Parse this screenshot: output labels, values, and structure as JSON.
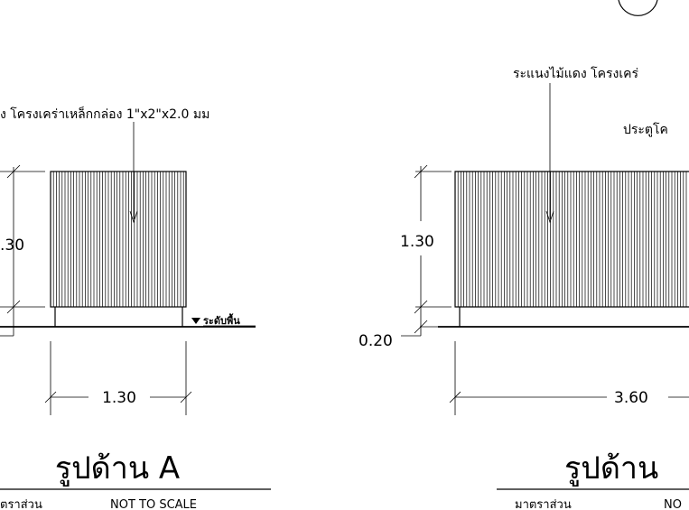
{
  "left": {
    "note": "ง โครงเคร่าเหล็กกล่อง 1\"x2\"x2.0 มม",
    "height_dim": ".30",
    "width_dim": "1.30",
    "ground_label": "ระดับพื้น",
    "title": "รูปด้าน A",
    "scale_label": "ตราส่วน",
    "scale_value": "NOT TO SCALE"
  },
  "right": {
    "note": "ระแนงไม้แดง โครงเคร่",
    "note2": "ประตูโค",
    "height_dim": "1.30",
    "base_dim": "0.20",
    "width_dim": "3.60",
    "title": "รูปด้าน",
    "scale_label": "มาตราส่วน",
    "scale_value": "NO"
  }
}
